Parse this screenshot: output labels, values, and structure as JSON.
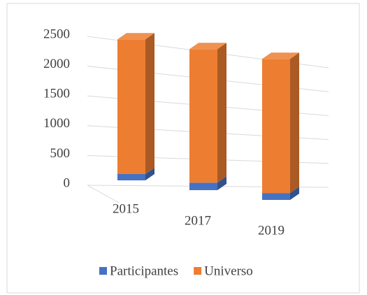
{
  "chart_data": {
    "type": "bar3d_stacked",
    "categories": [
      "2015",
      "2017",
      "2019"
    ],
    "series": [
      {
        "name": "Participantes",
        "color": "#4472c4",
        "values": [
          110,
          130,
          120
        ]
      },
      {
        "name": "Universo",
        "color": "#ed7d31",
        "values": [
          2350,
          2330,
          2340
        ]
      }
    ],
    "ylim": [
      0,
      2500
    ],
    "yticks": [
      0,
      500,
      1000,
      1500,
      2000,
      2500
    ],
    "grid": true,
    "legend": "bottom"
  }
}
